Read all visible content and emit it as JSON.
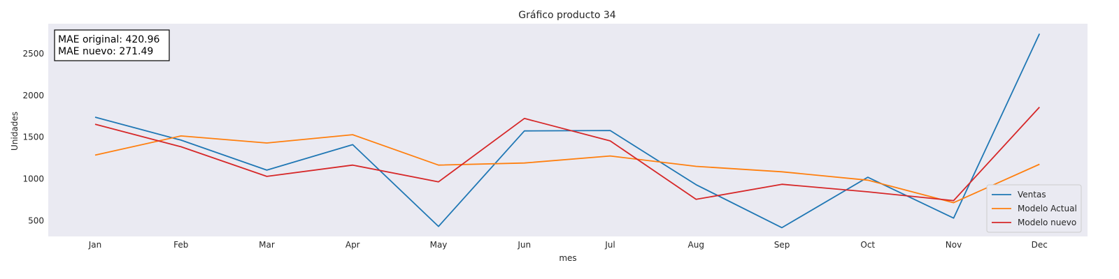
{
  "chart_data": {
    "type": "line",
    "title": "Gráfico producto 34",
    "xlabel": "mes",
    "ylabel": "Unidades",
    "categories": [
      "Jan",
      "Feb",
      "Mar",
      "Apr",
      "May",
      "Jun",
      "Jul",
      "Aug",
      "Sep",
      "Oct",
      "Nov",
      "Dec"
    ],
    "yticks": [
      500,
      1000,
      1500,
      2000,
      2500
    ],
    "ylim": [
      310,
      2860
    ],
    "grid": false,
    "legend_position": "lower-right",
    "series": [
      {
        "name": "Ventas",
        "color": "#1f77b4",
        "values": [
          1740,
          1465,
          1105,
          1410,
          430,
          1575,
          1580,
          930,
          415,
          1020,
          530,
          2740
        ]
      },
      {
        "name": "Modelo Actual",
        "color": "#ff7f0e",
        "values": [
          1285,
          1515,
          1430,
          1530,
          1165,
          1190,
          1275,
          1150,
          1085,
          985,
          715,
          1175
        ]
      },
      {
        "name": "Modelo nuevo",
        "color": "#d62728",
        "values": [
          1655,
          1385,
          1030,
          1165,
          965,
          1725,
          1455,
          755,
          935,
          845,
          740,
          1860
        ]
      }
    ],
    "annotation": {
      "lines": [
        "MAE original: 420.96",
        "MAE nuevo: 271.49"
      ]
    }
  }
}
